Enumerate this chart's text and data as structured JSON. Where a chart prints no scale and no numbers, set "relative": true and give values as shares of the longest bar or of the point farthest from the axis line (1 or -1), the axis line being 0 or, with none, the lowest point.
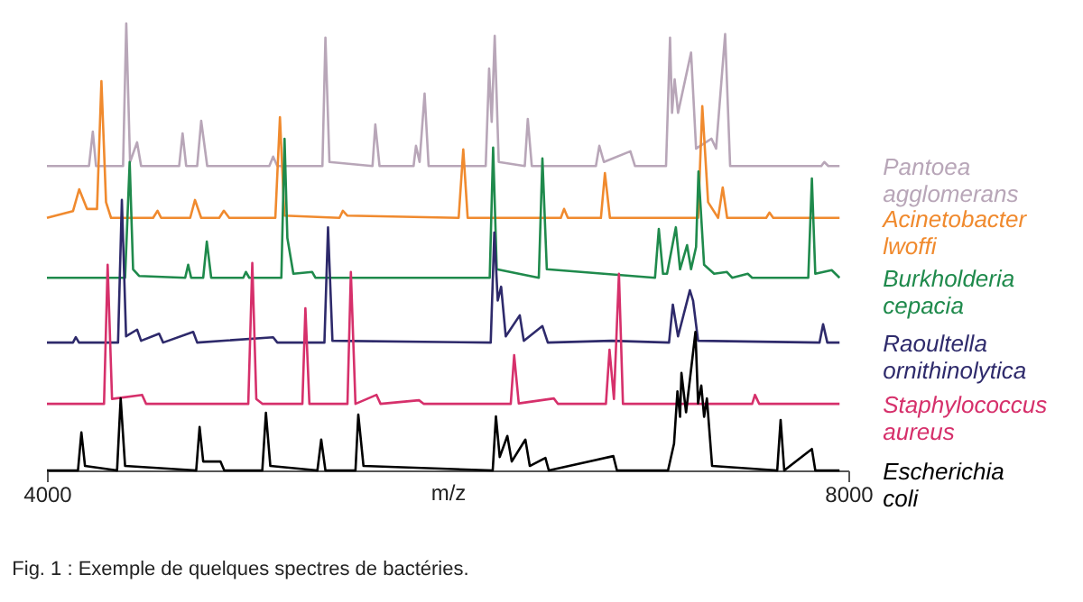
{
  "chart_data": {
    "type": "line",
    "relative": true,
    "xlabel": "m/z",
    "xlim": [
      4000,
      8000
    ],
    "xticks": [
      4000,
      8000
    ],
    "grid": false,
    "legend": false,
    "line_style": "solid",
    "marker": "none",
    "annotations": [
      "Fig. 1 : Exemple de quelques spectres de bactéries."
    ],
    "series": [
      {
        "name": "Pantoea agglomerans",
        "color": "#b8a6b8",
        "x": [
          4000,
          4210,
          4229,
          4245,
          4380,
          4396,
          4415,
          4450,
          4470,
          4660,
          4677,
          4695,
          4750,
          4770,
          4800,
          5110,
          5129,
          5150,
          5375,
          5390,
          5410,
          5625,
          5639,
          5660,
          5830,
          5842,
          5860,
          5885,
          5905,
          6190,
          6207,
          6220,
          6235,
          6255,
          6385,
          6400,
          6420,
          6740,
          6757,
          6780,
          6912,
          6935,
          7090,
          7110,
          7120,
          7133,
          7150,
          7215,
          7240,
          7317,
          7340,
          7385,
          7410,
          7865,
          7880,
          7900,
          7956
        ],
        "values": [
          0.681,
          0.681,
          0.758,
          0.681,
          0.681,
          1.0,
          0.69,
          0.734,
          0.681,
          0.681,
          0.754,
          0.681,
          0.681,
          0.782,
          0.681,
          0.681,
          0.702,
          0.681,
          0.681,
          0.968,
          0.69,
          0.681,
          0.774,
          0.681,
          0.681,
          0.726,
          0.69,
          0.843,
          0.681,
          0.681,
          0.899,
          0.78,
          0.972,
          0.69,
          0.681,
          0.786,
          0.681,
          0.681,
          0.726,
          0.69,
          0.714,
          0.681,
          0.681,
          0.968,
          0.8,
          0.875,
          0.8,
          0.935,
          0.72,
          0.742,
          0.72,
          0.976,
          0.681,
          0.681,
          0.69,
          0.681,
          0.681
        ]
      },
      {
        "name": "Acinetobacter lwoffi",
        "color": "#f08a2e",
        "x": [
          4000,
          4130,
          4161,
          4200,
          4250,
          4272,
          4295,
          4320,
          4530,
          4552,
          4570,
          4715,
          4739,
          4770,
          4860,
          4883,
          4910,
          5140,
          5163,
          5185,
          5460,
          5477,
          5500,
          6055,
          6078,
          6100,
          6565,
          6581,
          6600,
          6765,
          6785,
          6810,
          7250,
          7271,
          7300,
          7350,
          7373,
          7395,
          7590,
          7606,
          7625,
          7956
        ],
        "values": [
          0.565,
          0.58,
          0.629,
          0.585,
          0.585,
          0.871,
          0.6,
          0.565,
          0.565,
          0.581,
          0.565,
          0.565,
          0.605,
          0.565,
          0.565,
          0.581,
          0.565,
          0.565,
          0.79,
          0.57,
          0.565,
          0.581,
          0.57,
          0.565,
          0.718,
          0.565,
          0.565,
          0.585,
          0.565,
          0.565,
          0.665,
          0.565,
          0.565,
          0.815,
          0.6,
          0.565,
          0.633,
          0.565,
          0.565,
          0.577,
          0.565,
          0.565
        ]
      },
      {
        "name": "Burkholderia cepacia",
        "color": "#1f8a4c",
        "x": [
          4000,
          4390,
          4413,
          4430,
          4460,
          4690,
          4705,
          4720,
          4780,
          4798,
          4820,
          4980,
          4993,
          5010,
          5170,
          5186,
          5200,
          5230,
          5324,
          5340,
          6210,
          6227,
          6245,
          6455,
          6473,
          6495,
          7035,
          7054,
          7075,
          7095,
          7139,
          7160,
          7195,
          7215,
          7240,
          7252,
          7280,
          7330,
          7394,
          7420,
          7498,
          7520,
          7800,
          7818,
          7835,
          7917,
          7956
        ],
        "values": [
          0.431,
          0.431,
          0.69,
          0.45,
          0.435,
          0.431,
          0.46,
          0.431,
          0.431,
          0.512,
          0.431,
          0.431,
          0.444,
          0.431,
          0.431,
          0.742,
          0.52,
          0.44,
          0.444,
          0.431,
          0.431,
          0.722,
          0.45,
          0.431,
          0.698,
          0.45,
          0.431,
          0.54,
          0.44,
          0.44,
          0.544,
          0.45,
          0.504,
          0.45,
          0.5,
          0.669,
          0.46,
          0.44,
          0.444,
          0.431,
          0.44,
          0.431,
          0.431,
          0.653,
          0.44,
          0.448,
          0.431
        ]
      },
      {
        "name": "Raoultella ornithinolytica",
        "color": "#2e2a6b",
        "x": [
          4000,
          4130,
          4144,
          4160,
          4355,
          4374,
          4395,
          4450,
          4470,
          4560,
          4580,
          4730,
          4750,
          5129,
          5150,
          5385,
          5403,
          5425,
          6215,
          6233,
          6250,
          6267,
          6290,
          6360,
          6380,
          6473,
          6500,
          6819,
          7105,
          7124,
          7150,
          7209,
          7225,
          7250,
          7856,
          7874,
          7895,
          7956
        ],
        "values": [
          0.286,
          0.286,
          0.298,
          0.286,
          0.286,
          0.605,
          0.3,
          0.315,
          0.29,
          0.306,
          0.286,
          0.31,
          0.286,
          0.298,
          0.286,
          0.286,
          0.544,
          0.29,
          0.286,
          0.532,
          0.38,
          0.411,
          0.3,
          0.347,
          0.29,
          0.323,
          0.286,
          0.29,
          0.286,
          0.371,
          0.3,
          0.403,
          0.38,
          0.29,
          0.286,
          0.327,
          0.286,
          0.286
        ]
      },
      {
        "name": "Staphylococcus aureus",
        "color": "#d6306b",
        "x": [
          4000,
          4285,
          4303,
          4325,
          4475,
          4495,
          5005,
          5025,
          5045,
          5075,
          5275,
          5290,
          5310,
          5500,
          5517,
          5540,
          5645,
          5665,
          5857,
          5880,
          6315,
          6332,
          6355,
          6530,
          6550,
          6790,
          6808,
          6830,
          6855,
          6875,
          7520,
          7534,
          7555,
          7956
        ],
        "values": [
          0.149,
          0.149,
          0.46,
          0.16,
          0.169,
          0.149,
          0.149,
          0.464,
          0.16,
          0.149,
          0.149,
          0.363,
          0.149,
          0.149,
          0.444,
          0.149,
          0.169,
          0.149,
          0.157,
          0.149,
          0.149,
          0.258,
          0.15,
          0.161,
          0.149,
          0.149,
          0.27,
          0.16,
          0.44,
          0.149,
          0.149,
          0.169,
          0.149,
          0.149
        ]
      },
      {
        "name": "Escherichia coli",
        "color": "#000000",
        "x": [
          4000,
          4155,
          4172,
          4190,
          4350,
          4368,
          4390,
          4745,
          4762,
          4780,
          4866,
          4885,
          5075,
          5093,
          5115,
          5350,
          5369,
          5390,
          5540,
          5554,
          5580,
          6225,
          6241,
          6260,
          6298,
          6320,
          6388,
          6410,
          6488,
          6505,
          6827,
          6845,
          7100,
          7130,
          7147,
          7160,
          7167,
          7190,
          7237,
          7250,
          7266,
          7280,
          7294,
          7320,
          7645,
          7662,
          7680,
          7818,
          7835,
          7956
        ],
        "values": [
          0,
          0,
          0.085,
          0.01,
          0,
          0.161,
          0.01,
          0,
          0.097,
          0.02,
          0.02,
          0,
          0,
          0.129,
          0.01,
          0,
          0.069,
          0,
          0,
          0.125,
          0.01,
          0,
          0.121,
          0.03,
          0.077,
          0.02,
          0.069,
          0.01,
          0.028,
          0,
          0.032,
          0,
          0,
          0.06,
          0.177,
          0.12,
          0.218,
          0.13,
          0.31,
          0.15,
          0.19,
          0.12,
          0.161,
          0.01,
          0,
          0.113,
          0,
          0.048,
          0,
          0
        ]
      }
    ]
  }
}
